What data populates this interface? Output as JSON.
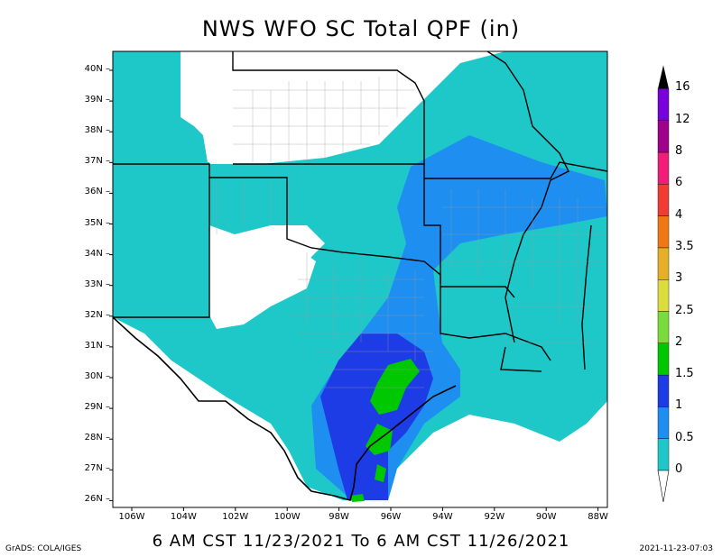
{
  "title": "NWS WFO SC Total QPF (in)",
  "subtitle": "6 AM CST 11/23/2021 To 6 AM CST 11/26/2021",
  "credit": "GrADS: COLA/IGES",
  "timestamp": "2021-11-23-07:03",
  "lat_labels": [
    "40N",
    "39N",
    "38N",
    "37N",
    "36N",
    "35N",
    "34N",
    "33N",
    "32N",
    "31N",
    "30N",
    "29N",
    "28N",
    "27N",
    "26N"
  ],
  "lon_labels": [
    "106W",
    "104W",
    "102W",
    "100W",
    "98W",
    "96W",
    "94W",
    "92W",
    "90W",
    "88W"
  ],
  "legend": {
    "labels": [
      "0",
      "0.5",
      "1",
      "1.5",
      "2",
      "2.5",
      "3",
      "3.5",
      "4",
      "6",
      "8",
      "12",
      "16"
    ],
    "colors": [
      "#1ec8c8",
      "#1e8ff0",
      "#1e3ce6",
      "#00c800",
      "#78dc3c",
      "#dcdc3c",
      "#e6af28",
      "#f07814",
      "#f03c32",
      "#f01e78",
      "#a0008c",
      "#7800dc",
      "#000000"
    ]
  },
  "fill_colors": {
    "none": "#ffffff",
    "q0": "#1ec8c8",
    "q05": "#1e8ff0",
    "q1": "#1e3ce6",
    "q15": "#00c800",
    "q2": "#78dc3c"
  }
}
